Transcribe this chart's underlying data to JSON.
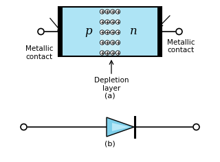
{
  "bg_color": "#ffffff",
  "pn_fill": "#aee4f5",
  "depletion_fill": "#c8eef8",
  "p_label": "p",
  "n_label": "n",
  "label_a": "(a)",
  "label_b": "(b)",
  "metallic_left": "Metallic\ncontact",
  "metallic_right": "Metallic\ncontact",
  "depletion_text": "Depletion\nlayer",
  "diode_color": "#7ecfea",
  "font_size": 8,
  "small_font": 7.5
}
